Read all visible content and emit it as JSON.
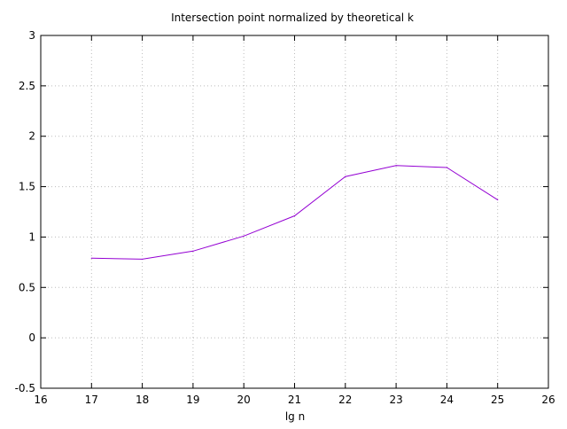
{
  "chart_data": {
    "type": "line",
    "title": "Intersection point normalized by theoretical k",
    "xlabel": "lg n",
    "ylabel": "",
    "xlim": [
      16,
      26
    ],
    "ylim": [
      -0.5,
      3
    ],
    "xticks": [
      16,
      17,
      18,
      19,
      20,
      21,
      22,
      23,
      24,
      25,
      26
    ],
    "xtick_labels": [
      "16",
      "17",
      "18",
      "19",
      "20",
      "21",
      "22",
      "23",
      "24",
      "25",
      "26"
    ],
    "yticks": [
      -0.5,
      0,
      0.5,
      1,
      1.5,
      2,
      2.5,
      3
    ],
    "ytick_labels": [
      "-0.5",
      "0",
      "0.5",
      "1",
      "1.5",
      "2",
      "2.5",
      "3"
    ],
    "grid": true,
    "legend": "none",
    "series": [
      {
        "color": "#9400d3",
        "x": [
          17,
          18,
          19,
          20,
          21,
          22,
          23,
          24,
          25
        ],
        "y": [
          0.79,
          0.78,
          0.86,
          1.01,
          1.21,
          1.6,
          1.71,
          1.69,
          1.37
        ]
      }
    ]
  }
}
